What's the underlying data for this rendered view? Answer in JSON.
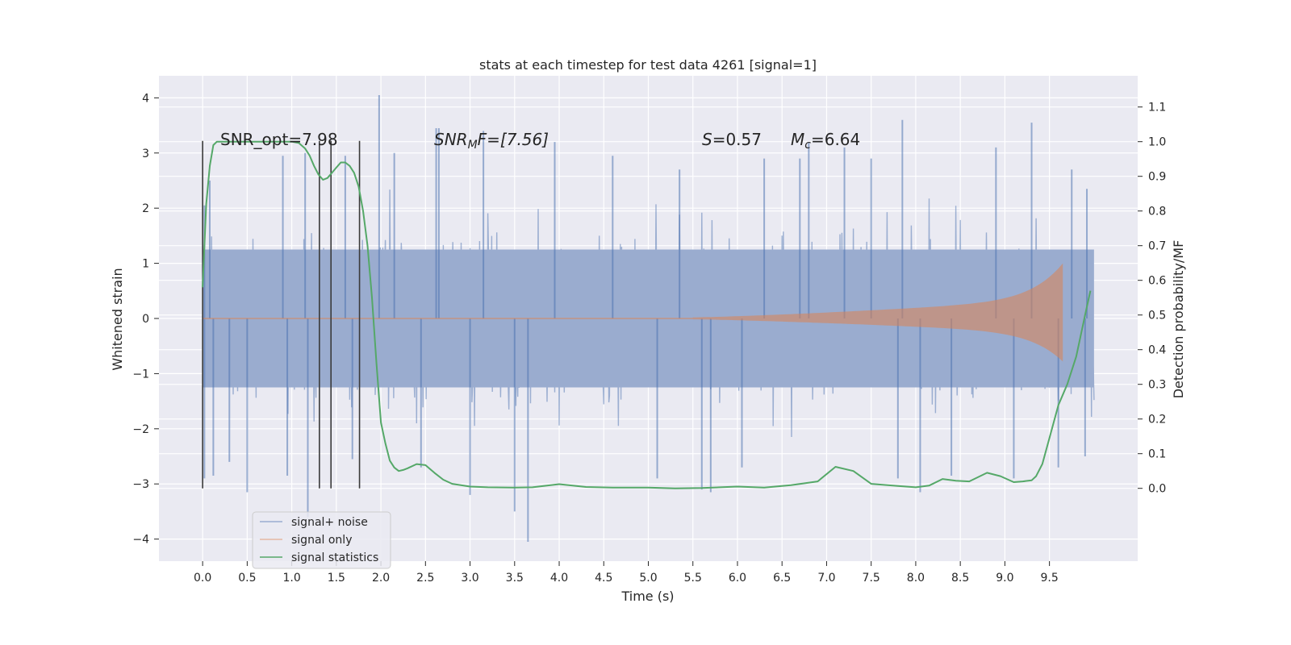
{
  "chart_data": {
    "type": "line",
    "title": "stats at each timestep for test data 4261 [signal=1]",
    "xlabel": "Time (s)",
    "ylabel_left": "Whitened strain",
    "ylabel_right": "Detection probability/MF",
    "xlim": [
      -0.49,
      10.49
    ],
    "ylim_left": [
      -4.4,
      4.4
    ],
    "ylim_right": [
      -0.21,
      1.19
    ],
    "x_ticks": [
      "0.0",
      "0.5",
      "1.0",
      "1.5",
      "2.0",
      "2.5",
      "3.0",
      "3.5",
      "4.0",
      "4.5",
      "5.0",
      "5.5",
      "6.0",
      "6.5",
      "7.0",
      "7.5",
      "8.0",
      "8.5",
      "9.0",
      "9.5"
    ],
    "y_ticks_left": [
      "4",
      "3",
      "2",
      "1",
      "0",
      "−1",
      "−2",
      "−3",
      "−4"
    ],
    "y_ticks_right": [
      "1.1",
      "1.0",
      "0.9",
      "0.8",
      "0.7",
      "0.6",
      "0.5",
      "0.4",
      "0.3",
      "0.2",
      "0.1",
      "0.0"
    ],
    "grid": true,
    "legend_position": "lower-left",
    "annotations": {
      "snr_opt": "SNR_opt=7.98",
      "snr_mf_prefix": "SNR",
      "snr_mf_sub": "M",
      "snr_mf_suffix": "F=[7.56]",
      "s_prefix": "S",
      "s_suffix": "=0.57",
      "mc_prefix": "M",
      "mc_sub": "c",
      "mc_suffix": "=6.64"
    },
    "vertical_markers_s": [
      0.0,
      1.31,
      1.44,
      1.76
    ],
    "series": [
      {
        "name": "signal+ noise",
        "color": "#4c72b0",
        "axis": "left",
        "x_range": [
          0.0,
          10.0
        ],
        "envelope": [
          1.25,
          -1.25
        ],
        "spikes": [
          [
            0.02,
            2.05
          ],
          [
            0.02,
            -2.9
          ],
          [
            0.08,
            2.5
          ],
          [
            0.12,
            -2.85
          ],
          [
            0.3,
            -2.6
          ],
          [
            0.5,
            -3.15
          ],
          [
            0.9,
            2.95
          ],
          [
            0.95,
            -2.85
          ],
          [
            1.15,
            3.0
          ],
          [
            1.18,
            -3.6
          ],
          [
            1.6,
            2.95
          ],
          [
            1.68,
            -2.55
          ],
          [
            1.98,
            4.05
          ],
          [
            2.15,
            3.0
          ],
          [
            2.45,
            -2.7
          ],
          [
            2.62,
            3.45
          ],
          [
            2.65,
            3.45
          ],
          [
            3.0,
            -3.2
          ],
          [
            3.15,
            3.4
          ],
          [
            3.5,
            -3.5
          ],
          [
            3.65,
            -4.05
          ],
          [
            3.95,
            3.2
          ],
          [
            4.6,
            2.95
          ],
          [
            5.1,
            -2.9
          ],
          [
            5.35,
            2.7
          ],
          [
            5.6,
            -3.1
          ],
          [
            5.7,
            -3.15
          ],
          [
            6.05,
            -2.7
          ],
          [
            6.3,
            2.9
          ],
          [
            6.7,
            2.9
          ],
          [
            6.8,
            3.2
          ],
          [
            7.2,
            3.1
          ],
          [
            7.5,
            2.9
          ],
          [
            7.8,
            -2.9
          ],
          [
            7.85,
            3.6
          ],
          [
            8.05,
            -3.15
          ],
          [
            8.4,
            -2.85
          ],
          [
            8.9,
            3.1
          ],
          [
            9.1,
            -2.9
          ],
          [
            9.3,
            3.55
          ],
          [
            9.6,
            -2.7
          ],
          [
            9.75,
            2.7
          ],
          [
            9.9,
            -2.5
          ],
          [
            9.92,
            2.35
          ]
        ]
      },
      {
        "name": "signal only",
        "color": "#dd8452",
        "axis": "left",
        "chirp_start": 5.5,
        "chirp_end": 9.65,
        "peak_amplitude": 1.0
      },
      {
        "name": "signal statistics",
        "color": "#55a868",
        "axis": "right",
        "x": [
          0.0,
          0.04,
          0.08,
          0.12,
          0.16,
          0.2,
          0.3,
          0.5,
          0.7,
          0.9,
          1.0,
          1.08,
          1.15,
          1.2,
          1.25,
          1.3,
          1.35,
          1.4,
          1.45,
          1.5,
          1.55,
          1.6,
          1.65,
          1.7,
          1.75,
          1.8,
          1.85,
          1.9,
          1.95,
          2.0,
          2.05,
          2.1,
          2.15,
          2.2,
          2.25,
          2.3,
          2.4,
          2.5,
          2.6,
          2.7,
          2.8,
          3.0,
          3.2,
          3.5,
          3.7,
          4.0,
          4.3,
          4.6,
          5.0,
          5.3,
          5.6,
          6.0,
          6.3,
          6.6,
          6.9,
          7.1,
          7.3,
          7.5,
          7.8,
          8.0,
          8.15,
          8.3,
          8.45,
          8.6,
          8.8,
          8.95,
          9.1,
          9.2,
          9.3,
          9.35,
          9.42,
          9.5,
          9.6,
          9.7,
          9.8,
          9.9,
          9.96
        ],
        "y": [
          0.58,
          0.82,
          0.93,
          0.99,
          1.0,
          1.0,
          1.0,
          1.0,
          1.0,
          1.0,
          1.0,
          0.996,
          0.98,
          0.96,
          0.93,
          0.905,
          0.89,
          0.895,
          0.91,
          0.925,
          0.94,
          0.94,
          0.93,
          0.91,
          0.87,
          0.8,
          0.7,
          0.55,
          0.36,
          0.19,
          0.13,
          0.08,
          0.06,
          0.05,
          0.053,
          0.058,
          0.07,
          0.067,
          0.045,
          0.025,
          0.013,
          0.005,
          0.003,
          0.002,
          0.003,
          0.012,
          0.004,
          0.002,
          0.002,
          0.0,
          0.001,
          0.005,
          0.002,
          0.009,
          0.02,
          0.062,
          0.05,
          0.013,
          0.007,
          0.003,
          0.008,
          0.027,
          0.022,
          0.02,
          0.045,
          0.035,
          0.018,
          0.02,
          0.023,
          0.035,
          0.07,
          0.145,
          0.24,
          0.3,
          0.38,
          0.5,
          0.57
        ]
      }
    ]
  }
}
